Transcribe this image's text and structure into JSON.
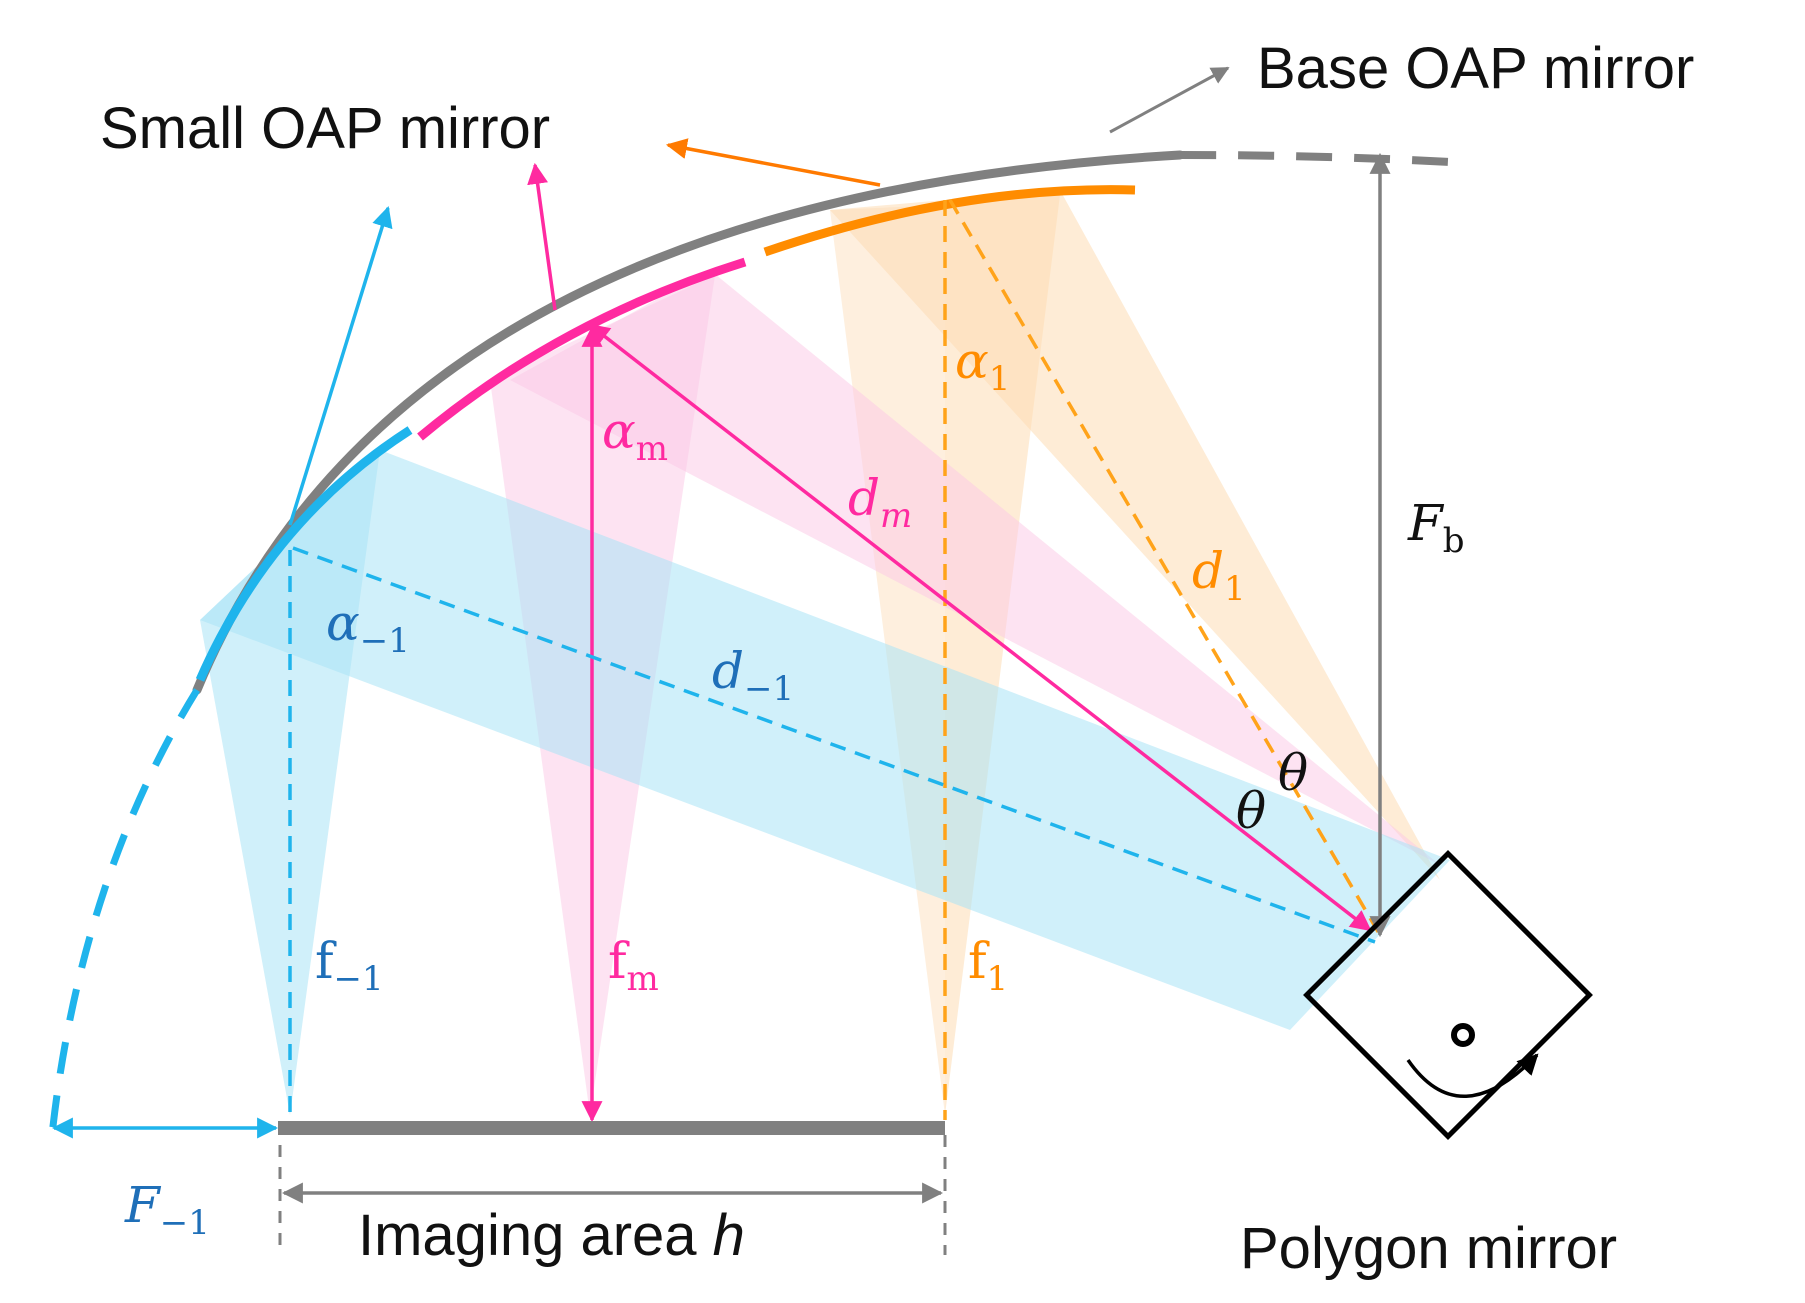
{
  "labels": {
    "base_oap": "Base OAP mirror",
    "small_oap": "Small OAP mirror",
    "imaging_area_prefix": "Imaging area ",
    "imaging_area_var": "h",
    "polygon": "Polygon mirror"
  },
  "symbols": {
    "alpha1": {
      "main": "α",
      "sub": "1"
    },
    "alpham": {
      "main": "α",
      "sub": "m"
    },
    "alpham1": {
      "main": "α",
      "sub": "−1"
    },
    "d1": {
      "main": "d",
      "sub": "1"
    },
    "dm": {
      "main": "d",
      "sub": "m"
    },
    "dm1": {
      "main": "d",
      "sub": "−1"
    },
    "f1": {
      "main": "f",
      "sub": "1"
    },
    "fm": {
      "main": "f",
      "sub": "m"
    },
    "fm1": {
      "main": "f",
      "sub": "−1"
    },
    "Fb": {
      "main": "F",
      "sub": "b"
    },
    "Fm1": {
      "main": "F",
      "sub": "−1"
    },
    "theta_a": "θ",
    "theta_b": "θ"
  },
  "colors": {
    "gray": "#808080",
    "orange": "#FF8C00",
    "magenta": "#FF2AA0",
    "cyan": "#1FB4EC",
    "blue_text": "#1F6FB8",
    "orange_beam": "#FDDCB5",
    "magenta_beam": "#FBC8E6",
    "cyan_beam": "#A9E4F6"
  }
}
